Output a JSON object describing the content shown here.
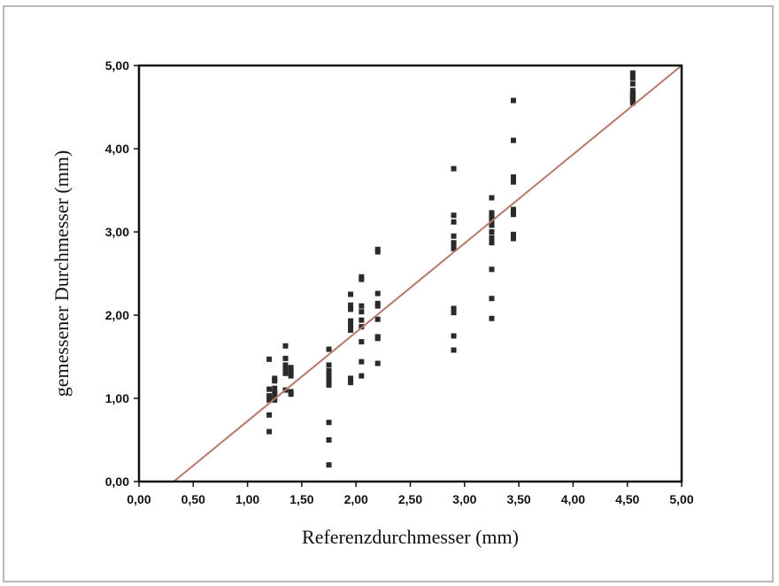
{
  "chart_data": {
    "type": "scatter",
    "title": "",
    "xlabel": "Referenzdurchmesser (mm)",
    "ylabel": "gemessener Durchmesser (mm)",
    "xlim": [
      0,
      5
    ],
    "ylim": [
      0,
      5
    ],
    "xticks": [
      "0,00",
      "0,50",
      "1,00",
      "1,50",
      "2,00",
      "2,50",
      "3,00",
      "3,50",
      "4,00",
      "4,50",
      "5,00"
    ],
    "yticks": [
      "0,00",
      "1,00",
      "2,00",
      "3,00",
      "4,00",
      "5,00"
    ],
    "grid": false,
    "marker_color": "#2a2a2a",
    "line_color": "#b8786a",
    "regression_line": {
      "x": [
        0.32,
        5.0
      ],
      "y": [
        0.0,
        5.0
      ]
    },
    "points": [
      [
        1.2,
        1.47
      ],
      [
        1.2,
        1.11
      ],
      [
        1.2,
        1.03
      ],
      [
        1.2,
        0.98
      ],
      [
        1.2,
        0.8
      ],
      [
        1.2,
        0.6
      ],
      [
        1.25,
        1.24
      ],
      [
        1.25,
        1.21
      ],
      [
        1.25,
        1.12
      ],
      [
        1.25,
        1.07
      ],
      [
        1.25,
        1.03
      ],
      [
        1.25,
        0.98
      ],
      [
        1.35,
        1.63
      ],
      [
        1.35,
        1.48
      ],
      [
        1.35,
        1.4
      ],
      [
        1.35,
        1.35
      ],
      [
        1.35,
        1.3
      ],
      [
        1.35,
        1.1
      ],
      [
        1.4,
        1.37
      ],
      [
        1.4,
        1.32
      ],
      [
        1.4,
        1.27
      ],
      [
        1.4,
        1.08
      ],
      [
        1.4,
        1.05
      ],
      [
        1.75,
        1.59
      ],
      [
        1.75,
        1.4
      ],
      [
        1.75,
        1.33
      ],
      [
        1.75,
        1.27
      ],
      [
        1.75,
        1.22
      ],
      [
        1.75,
        1.16
      ],
      [
        1.75,
        0.71
      ],
      [
        1.75,
        0.5
      ],
      [
        1.75,
        0.2
      ],
      [
        1.95,
        2.25
      ],
      [
        1.95,
        2.12
      ],
      [
        1.95,
        2.07
      ],
      [
        1.95,
        1.93
      ],
      [
        1.95,
        1.88
      ],
      [
        1.95,
        1.82
      ],
      [
        1.95,
        1.24
      ],
      [
        1.95,
        1.19
      ],
      [
        2.05,
        2.46
      ],
      [
        2.05,
        2.43
      ],
      [
        2.05,
        2.11
      ],
      [
        2.05,
        2.04
      ],
      [
        2.05,
        1.94
      ],
      [
        2.05,
        1.86
      ],
      [
        2.05,
        1.68
      ],
      [
        2.05,
        1.44
      ],
      [
        2.05,
        1.27
      ],
      [
        2.2,
        2.79
      ],
      [
        2.2,
        2.76
      ],
      [
        2.2,
        2.26
      ],
      [
        2.2,
        2.14
      ],
      [
        2.2,
        2.11
      ],
      [
        2.2,
        1.95
      ],
      [
        2.2,
        1.74
      ],
      [
        2.2,
        1.72
      ],
      [
        2.2,
        1.42
      ],
      [
        2.9,
        3.76
      ],
      [
        2.9,
        3.2
      ],
      [
        2.9,
        3.12
      ],
      [
        2.9,
        2.95
      ],
      [
        2.9,
        2.87
      ],
      [
        2.9,
        2.83
      ],
      [
        2.9,
        2.8
      ],
      [
        2.9,
        2.08
      ],
      [
        2.9,
        2.03
      ],
      [
        2.9,
        1.75
      ],
      [
        2.9,
        1.58
      ],
      [
        3.25,
        3.41
      ],
      [
        3.25,
        3.23
      ],
      [
        3.25,
        3.19
      ],
      [
        3.25,
        3.16
      ],
      [
        3.25,
        3.12
      ],
      [
        3.25,
        3.08
      ],
      [
        3.25,
        3.0
      ],
      [
        3.25,
        2.93
      ],
      [
        3.25,
        2.87
      ],
      [
        3.25,
        2.55
      ],
      [
        3.25,
        2.2
      ],
      [
        3.25,
        1.96
      ],
      [
        3.45,
        4.58
      ],
      [
        3.45,
        4.1
      ],
      [
        3.45,
        3.66
      ],
      [
        3.45,
        3.6
      ],
      [
        3.45,
        3.27
      ],
      [
        3.45,
        3.24
      ],
      [
        3.45,
        3.21
      ],
      [
        3.45,
        2.97
      ],
      [
        3.45,
        2.92
      ],
      [
        4.55,
        4.91
      ],
      [
        4.55,
        4.85
      ],
      [
        4.55,
        4.78
      ],
      [
        4.55,
        4.7
      ],
      [
        4.55,
        4.66
      ],
      [
        4.55,
        4.64
      ],
      [
        4.55,
        4.62
      ],
      [
        4.55,
        4.6
      ],
      [
        4.55,
        4.58
      ],
      [
        4.55,
        4.55
      ]
    ]
  }
}
